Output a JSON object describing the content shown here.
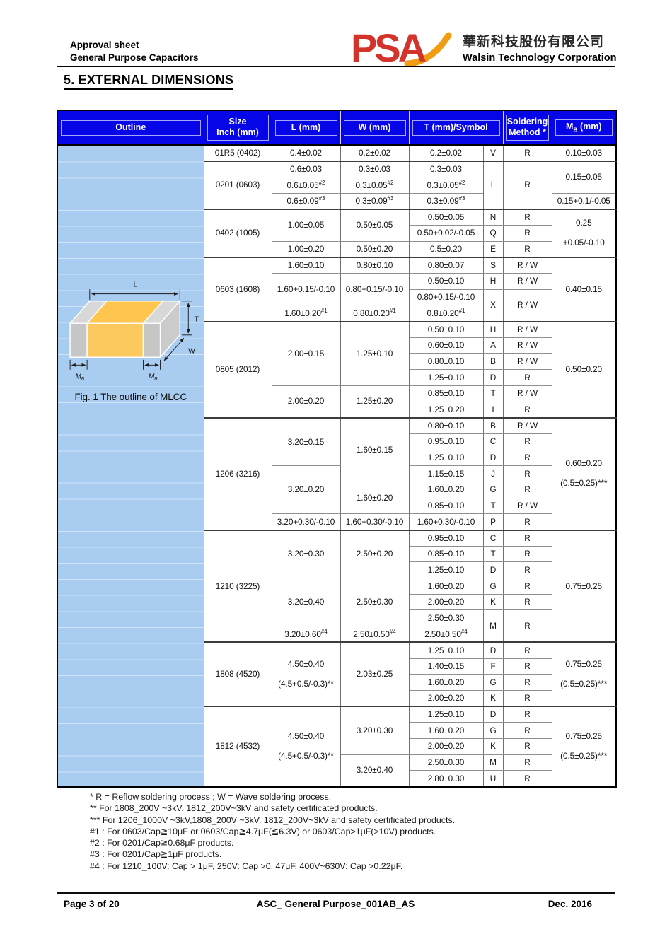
{
  "header": {
    "line1": "Approval sheet",
    "line2": "General Purpose Capacitors",
    "logo_text": "PSA",
    "company_cn": "華新科技股份有限公司",
    "company_en": "Walsin Technology Corporation"
  },
  "section_title": "5. EXTERNAL DIMENSIONS",
  "colors": {
    "header_bg": "#0505e8",
    "panel_bg": "#a9ccf1",
    "logo_red": "#d2342c",
    "logo_orange": "#f09d13",
    "mlcc_body_orange": "#ffc54f",
    "mlcc_terminal_gray": "#c6c6c6"
  },
  "figure": {
    "caption": "Fig. 1 The outline of MLCC",
    "labels": {
      "l": "L",
      "t": "T",
      "w": "W",
      "m": "M",
      "b": "B"
    }
  },
  "table": {
    "headers": [
      {
        "t": "Outline"
      },
      {
        "t": "Size\nInch (mm)"
      },
      {
        "t": "L (mm)"
      },
      {
        "t": "W (mm)"
      },
      {
        "t": "T (mm)/Symbol",
        "cs": 2
      },
      {
        "t": "Soldering\nMethod *"
      },
      {
        "pre": "M",
        "sub": "B",
        "post": " (mm)"
      }
    ],
    "rows": [
      {
        "cells": [
          {
            "o": 1,
            "rs": 40
          },
          {
            "t": "01R5 (0402)"
          },
          {
            "t": "0.4±0.02"
          },
          {
            "t": "0.2±0.02"
          },
          {
            "t": "0.2±0.02"
          },
          {
            "t": "V"
          },
          {
            "t": "R"
          },
          {
            "t": "0.10±0.03"
          }
        ]
      },
      {
        "g": 1,
        "cells": [
          {
            "t": "0201 (0603)",
            "rs": 3
          },
          {
            "t": "0.6±0.03"
          },
          {
            "t": "0.3±0.03"
          },
          {
            "t": "0.3±0.03"
          },
          {
            "t": "L",
            "rs": 3
          },
          {
            "t": "R",
            "rs": 3
          },
          {
            "t": "0.15±0.05",
            "rs": 2
          }
        ]
      },
      {
        "cells": [
          {
            "t": "0.6±0.05",
            "sup": "#2"
          },
          {
            "t": "0.3±0.05",
            "sup": "#2"
          },
          {
            "t": "0.3±0.05",
            "sup": "#2"
          }
        ]
      },
      {
        "cells": [
          {
            "t": "0.6±0.09",
            "sup": "#3"
          },
          {
            "t": "0.3±0.09",
            "sup": "#3"
          },
          {
            "t": "0.3±0.09",
            "sup": "#3"
          },
          {
            "t": "0.15+0.1/-0.05"
          }
        ]
      },
      {
        "g": 1,
        "cells": [
          {
            "t": "0402 (1005)",
            "rs": 3
          },
          {
            "t": "1.00±0.05",
            "rs": 2
          },
          {
            "t": "0.50±0.05",
            "rs": 2
          },
          {
            "t": "0.50±0.05"
          },
          {
            "t": "N"
          },
          {
            "t": "R"
          },
          {
            "t": "0.25\n+0.05/-0.10",
            "rs": 3
          }
        ]
      },
      {
        "cells": [
          {
            "t": "0.50+0.02/-0.05"
          },
          {
            "t": "Q"
          },
          {
            "t": "R"
          }
        ]
      },
      {
        "cells": [
          {
            "t": "1.00±0.20"
          },
          {
            "t": "0.50±0.20"
          },
          {
            "t": "0.5±0.20"
          },
          {
            "t": "E"
          },
          {
            "t": "R"
          }
        ]
      },
      {
        "g": 1,
        "cells": [
          {
            "t": "0603 (1608)",
            "rs": 4
          },
          {
            "t": "1.60±0.10"
          },
          {
            "t": "0.80±0.10"
          },
          {
            "t": "0.80±0.07"
          },
          {
            "t": "S"
          },
          {
            "t": "R / W"
          },
          {
            "t": "0.40±0.15",
            "rs": 4
          }
        ]
      },
      {
        "cells": [
          {
            "t": "1.60+0.15/-0.10",
            "rs": 2
          },
          {
            "t": "0.80+0.15/-0.10",
            "rs": 2
          },
          {
            "t": "0.50±0.10"
          },
          {
            "t": "H"
          },
          {
            "t": "R / W"
          }
        ]
      },
      {
        "cells": [
          {
            "t": "0.80+0.15/-0.10"
          },
          {
            "t": "X",
            "rs": 2
          },
          {
            "t": "R / W",
            "rs": 2
          }
        ]
      },
      {
        "cells": [
          {
            "t": "1.60±0.20",
            "sup": "#1"
          },
          {
            "t": "0.80±0.20",
            "sup": "#1"
          },
          {
            "t": "0.8±0.20",
            "sup": "#1"
          }
        ]
      },
      {
        "g": 1,
        "cells": [
          {
            "t": "0805 (2012)",
            "rs": 6
          },
          {
            "t": "2.00±0.15",
            "rs": 4
          },
          {
            "t": "1.25±0.10",
            "rs": 4
          },
          {
            "t": "0.50±0.10"
          },
          {
            "t": "H"
          },
          {
            "t": "R / W"
          },
          {
            "t": "0.50±0.20",
            "rs": 6
          }
        ]
      },
      {
        "cells": [
          {
            "t": "0.60±0.10"
          },
          {
            "t": "A"
          },
          {
            "t": "R / W"
          }
        ]
      },
      {
        "cells": [
          {
            "t": "0.80±0.10"
          },
          {
            "t": "B"
          },
          {
            "t": "R / W"
          }
        ]
      },
      {
        "cells": [
          {
            "t": "1.25±0.10"
          },
          {
            "t": "D"
          },
          {
            "t": "R"
          }
        ]
      },
      {
        "cells": [
          {
            "t": "2.00±0.20",
            "rs": 2
          },
          {
            "t": "1.25±0.20",
            "rs": 2
          },
          {
            "t": "0.85±0.10"
          },
          {
            "t": "T"
          },
          {
            "t": "R / W"
          }
        ]
      },
      {
        "cells": [
          {
            "t": "1.25±0.20"
          },
          {
            "t": "I"
          },
          {
            "t": "R"
          }
        ]
      },
      {
        "g": 1,
        "cells": [
          {
            "t": "1206 (3216)",
            "rs": 7
          },
          {
            "t": "3.20±0.15",
            "rs": 3
          },
          {
            "t": "1.60±0.15",
            "rs": 4
          },
          {
            "t": "0.80±0.10"
          },
          {
            "t": "B"
          },
          {
            "t": "R / W"
          },
          {
            "t": "0.60±0.20\n(0.5±0.25)***",
            "rs": 7
          }
        ]
      },
      {
        "cells": [
          {
            "t": "0.95±0.10"
          },
          {
            "t": "C"
          },
          {
            "t": "R"
          }
        ]
      },
      {
        "cells": [
          {
            "t": "1.25±0.10"
          },
          {
            "t": "D"
          },
          {
            "t": "R"
          }
        ]
      },
      {
        "cells": [
          {
            "t": "3.20±0.20",
            "rs": 3
          },
          {
            "t": "1.15±0.15"
          },
          {
            "t": "J"
          },
          {
            "t": "R"
          }
        ]
      },
      {
        "cells": [
          {
            "t": "1.60±0.20",
            "rs": 2
          },
          {
            "t": "1.60±0.20"
          },
          {
            "t": "G"
          },
          {
            "t": "R"
          }
        ]
      },
      {
        "cells": [
          {
            "t": "0.85±0.10"
          },
          {
            "t": "T"
          },
          {
            "t": "R / W"
          }
        ]
      },
      {
        "cells": [
          {
            "t": "3.20+0.30/-0.10"
          },
          {
            "t": "1.60+0.30/-0.10"
          },
          {
            "t": "1.60+0.30/-0.10"
          },
          {
            "t": "P"
          },
          {
            "t": "R"
          }
        ]
      },
      {
        "g": 1,
        "cells": [
          {
            "t": "1210 (3225)",
            "rs": 7
          },
          {
            "t": "3.20±0.30",
            "rs": 3
          },
          {
            "t": "2.50±0.20",
            "rs": 3
          },
          {
            "t": "0.95±0.10"
          },
          {
            "t": "C"
          },
          {
            "t": "R"
          },
          {
            "t": "0.75±0.25",
            "rs": 7
          }
        ]
      },
      {
        "cells": [
          {
            "t": "0.85±0.10"
          },
          {
            "t": "T"
          },
          {
            "t": "R"
          }
        ]
      },
      {
        "cells": [
          {
            "t": "1.25±0.10"
          },
          {
            "t": "D"
          },
          {
            "t": "R"
          }
        ]
      },
      {
        "cells": [
          {
            "t": "3.20±0.40",
            "rs": 3
          },
          {
            "t": "2.50±0.30",
            "rs": 3
          },
          {
            "t": "1.60±0.20"
          },
          {
            "t": "G"
          },
          {
            "t": "R"
          }
        ]
      },
      {
        "cells": [
          {
            "t": "2.00±0.20"
          },
          {
            "t": "K"
          },
          {
            "t": "R"
          }
        ]
      },
      {
        "cells": [
          {
            "t": "2.50±0.30"
          },
          {
            "t": "M",
            "rs": 2
          },
          {
            "t": "R",
            "rs": 2
          }
        ]
      },
      {
        "cells": [
          {
            "t": "3.20±0.60",
            "sup": "#4"
          },
          {
            "t": "2.50±0.50",
            "sup": "#4"
          },
          {
            "t": "2.50±0.50",
            "sup": "#4"
          }
        ]
      },
      {
        "g": 1,
        "cells": [
          {
            "t": "1808 (4520)",
            "rs": 4
          },
          {
            "t": "4.50±0.40\n(4.5+0.5/-0.3)**",
            "rs": 4
          },
          {
            "t": "2.03±0.25",
            "rs": 4
          },
          {
            "t": "1.25±0.10"
          },
          {
            "t": "D"
          },
          {
            "t": "R"
          },
          {
            "t": "0.75±0.25\n(0.5±0.25)***",
            "rs": 4
          }
        ]
      },
      {
        "cells": [
          {
            "t": "1.40±0.15"
          },
          {
            "t": "F"
          },
          {
            "t": "R"
          }
        ]
      },
      {
        "cells": [
          {
            "t": "1.60±0.20"
          },
          {
            "t": "G"
          },
          {
            "t": "R"
          }
        ]
      },
      {
        "cells": [
          {
            "t": "2.00±0.20"
          },
          {
            "t": "K"
          },
          {
            "t": "R"
          }
        ]
      },
      {
        "g": 1,
        "cells": [
          {
            "t": "1812 (4532)",
            "rs": 5
          },
          {
            "t": "4.50±0.40\n(4.5+0.5/-0.3)**",
            "rs": 5
          },
          {
            "t": "3.20±0.30",
            "rs": 3
          },
          {
            "t": "1.25±0.10"
          },
          {
            "t": "D"
          },
          {
            "t": "R"
          },
          {
            "t": "0.75±0.25\n(0.5±0.25)***",
            "rs": 5
          }
        ]
      },
      {
        "cells": [
          {
            "t": "1.60±0.20"
          },
          {
            "t": "G"
          },
          {
            "t": "R"
          }
        ]
      },
      {
        "cells": [
          {
            "t": "2.00±0.20"
          },
          {
            "t": "K"
          },
          {
            "t": "R"
          }
        ]
      },
      {
        "cells": [
          {
            "t": "3.20±0.40",
            "rs": 2
          },
          {
            "t": "2.50±0.30"
          },
          {
            "t": "M"
          },
          {
            "t": "R"
          }
        ]
      },
      {
        "cells": [
          {
            "t": "2.80±0.30"
          },
          {
            "t": "U"
          },
          {
            "t": "R"
          }
        ]
      }
    ]
  },
  "footnotes": [
    "* R = Reflow soldering process ; W = Wave soldering process.",
    "** For 1808_200V ~3kV, 1812_200V~3kV and safety certificated products.",
    "*** For 1206_1000V ~3kV,1808_200V ~3kV, 1812_200V~3kV and safety certificated products.",
    "#1 : For 0603/Cap≧10μF or 0603/Cap≧4.7μF(≦6.3V) or 0603/Cap>1μF(>10V) products.",
    "#2 : For 0201/Cap≧0.68μF products.",
    "#3 : For 0201/Cap≧1μF products.",
    "#4 : For 1210_100V: Cap > 1μF, 250V: Cap >0. 47μF, 400V~630V: Cap >0.22μF."
  ],
  "footer": {
    "page": "Page 3 of 20",
    "doc": "ASC_ General Purpose_001AB_AS",
    "date": "Dec. 2016"
  }
}
